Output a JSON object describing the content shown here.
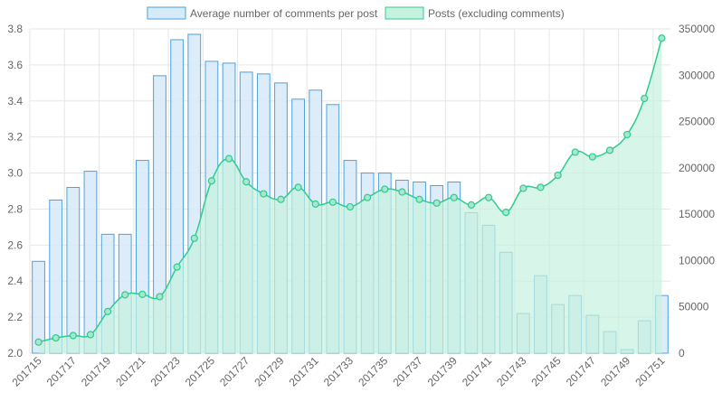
{
  "chart_data": {
    "type": "bar+area",
    "categories": [
      "201715",
      "201716",
      "201717",
      "201718",
      "201719",
      "201720",
      "201721",
      "201722",
      "201723",
      "201724",
      "201725",
      "201726",
      "201727",
      "201728",
      "201729",
      "201730",
      "201731",
      "201732",
      "201733",
      "201734",
      "201735",
      "201736",
      "201737",
      "201738",
      "201739",
      "201740",
      "201741",
      "201742",
      "201743",
      "201744",
      "201745",
      "201746",
      "201747",
      "201748",
      "201749",
      "201750",
      "201751"
    ],
    "x_tick_labels": [
      "201715",
      "201717",
      "201719",
      "201721",
      "201723",
      "201725",
      "201727",
      "201729",
      "201731",
      "201733",
      "201735",
      "201737",
      "201739",
      "201741",
      "201743",
      "201745",
      "201747",
      "201749",
      "201751"
    ],
    "series": [
      {
        "name": "Average number of comments per post",
        "type": "bar",
        "axis": "left",
        "values": [
          2.51,
          2.85,
          2.92,
          3.01,
          2.66,
          2.66,
          3.07,
          3.54,
          3.74,
          3.77,
          3.62,
          3.61,
          3.56,
          3.55,
          3.5,
          3.41,
          3.46,
          3.38,
          3.07,
          3.0,
          3.0,
          2.96,
          2.95,
          2.93,
          2.95,
          2.78,
          2.71,
          2.56,
          2.22,
          2.43,
          2.27,
          2.32,
          2.21,
          2.12,
          2.02,
          2.18,
          2.32
        ]
      },
      {
        "name": "Posts (excluding comments)",
        "type": "area",
        "axis": "right",
        "values": [
          12000,
          16500,
          19000,
          20000,
          45000,
          63000,
          63500,
          61000,
          93000,
          124000,
          186000,
          210000,
          185000,
          172000,
          166000,
          179000,
          161000,
          163000,
          158000,
          168000,
          177000,
          174000,
          166000,
          162000,
          168000,
          160000,
          168000,
          152000,
          178000,
          179000,
          192000,
          217000,
          212000,
          219000,
          236000,
          275000,
          340000
        ]
      }
    ],
    "y_left": {
      "min": 2.0,
      "max": 3.8,
      "ticks": [
        "2.0",
        "2.2",
        "2.4",
        "2.6",
        "2.8",
        "3.0",
        "3.2",
        "3.4",
        "3.6",
        "3.8"
      ]
    },
    "y_right": {
      "min": 0,
      "max": 350000,
      "ticks": [
        "0",
        "50000",
        "100000",
        "150000",
        "200000",
        "250000",
        "300000",
        "350000"
      ]
    },
    "grid": true,
    "legend_position": "top",
    "colors": {
      "bar_fill": "#d6eaf8",
      "bar_stroke": "#4aa3df",
      "area_fill": "#c6f1de",
      "area_line": "#2ecc8f",
      "point_fill": "#a8e6cf",
      "grid": "#e6e6e6"
    }
  }
}
